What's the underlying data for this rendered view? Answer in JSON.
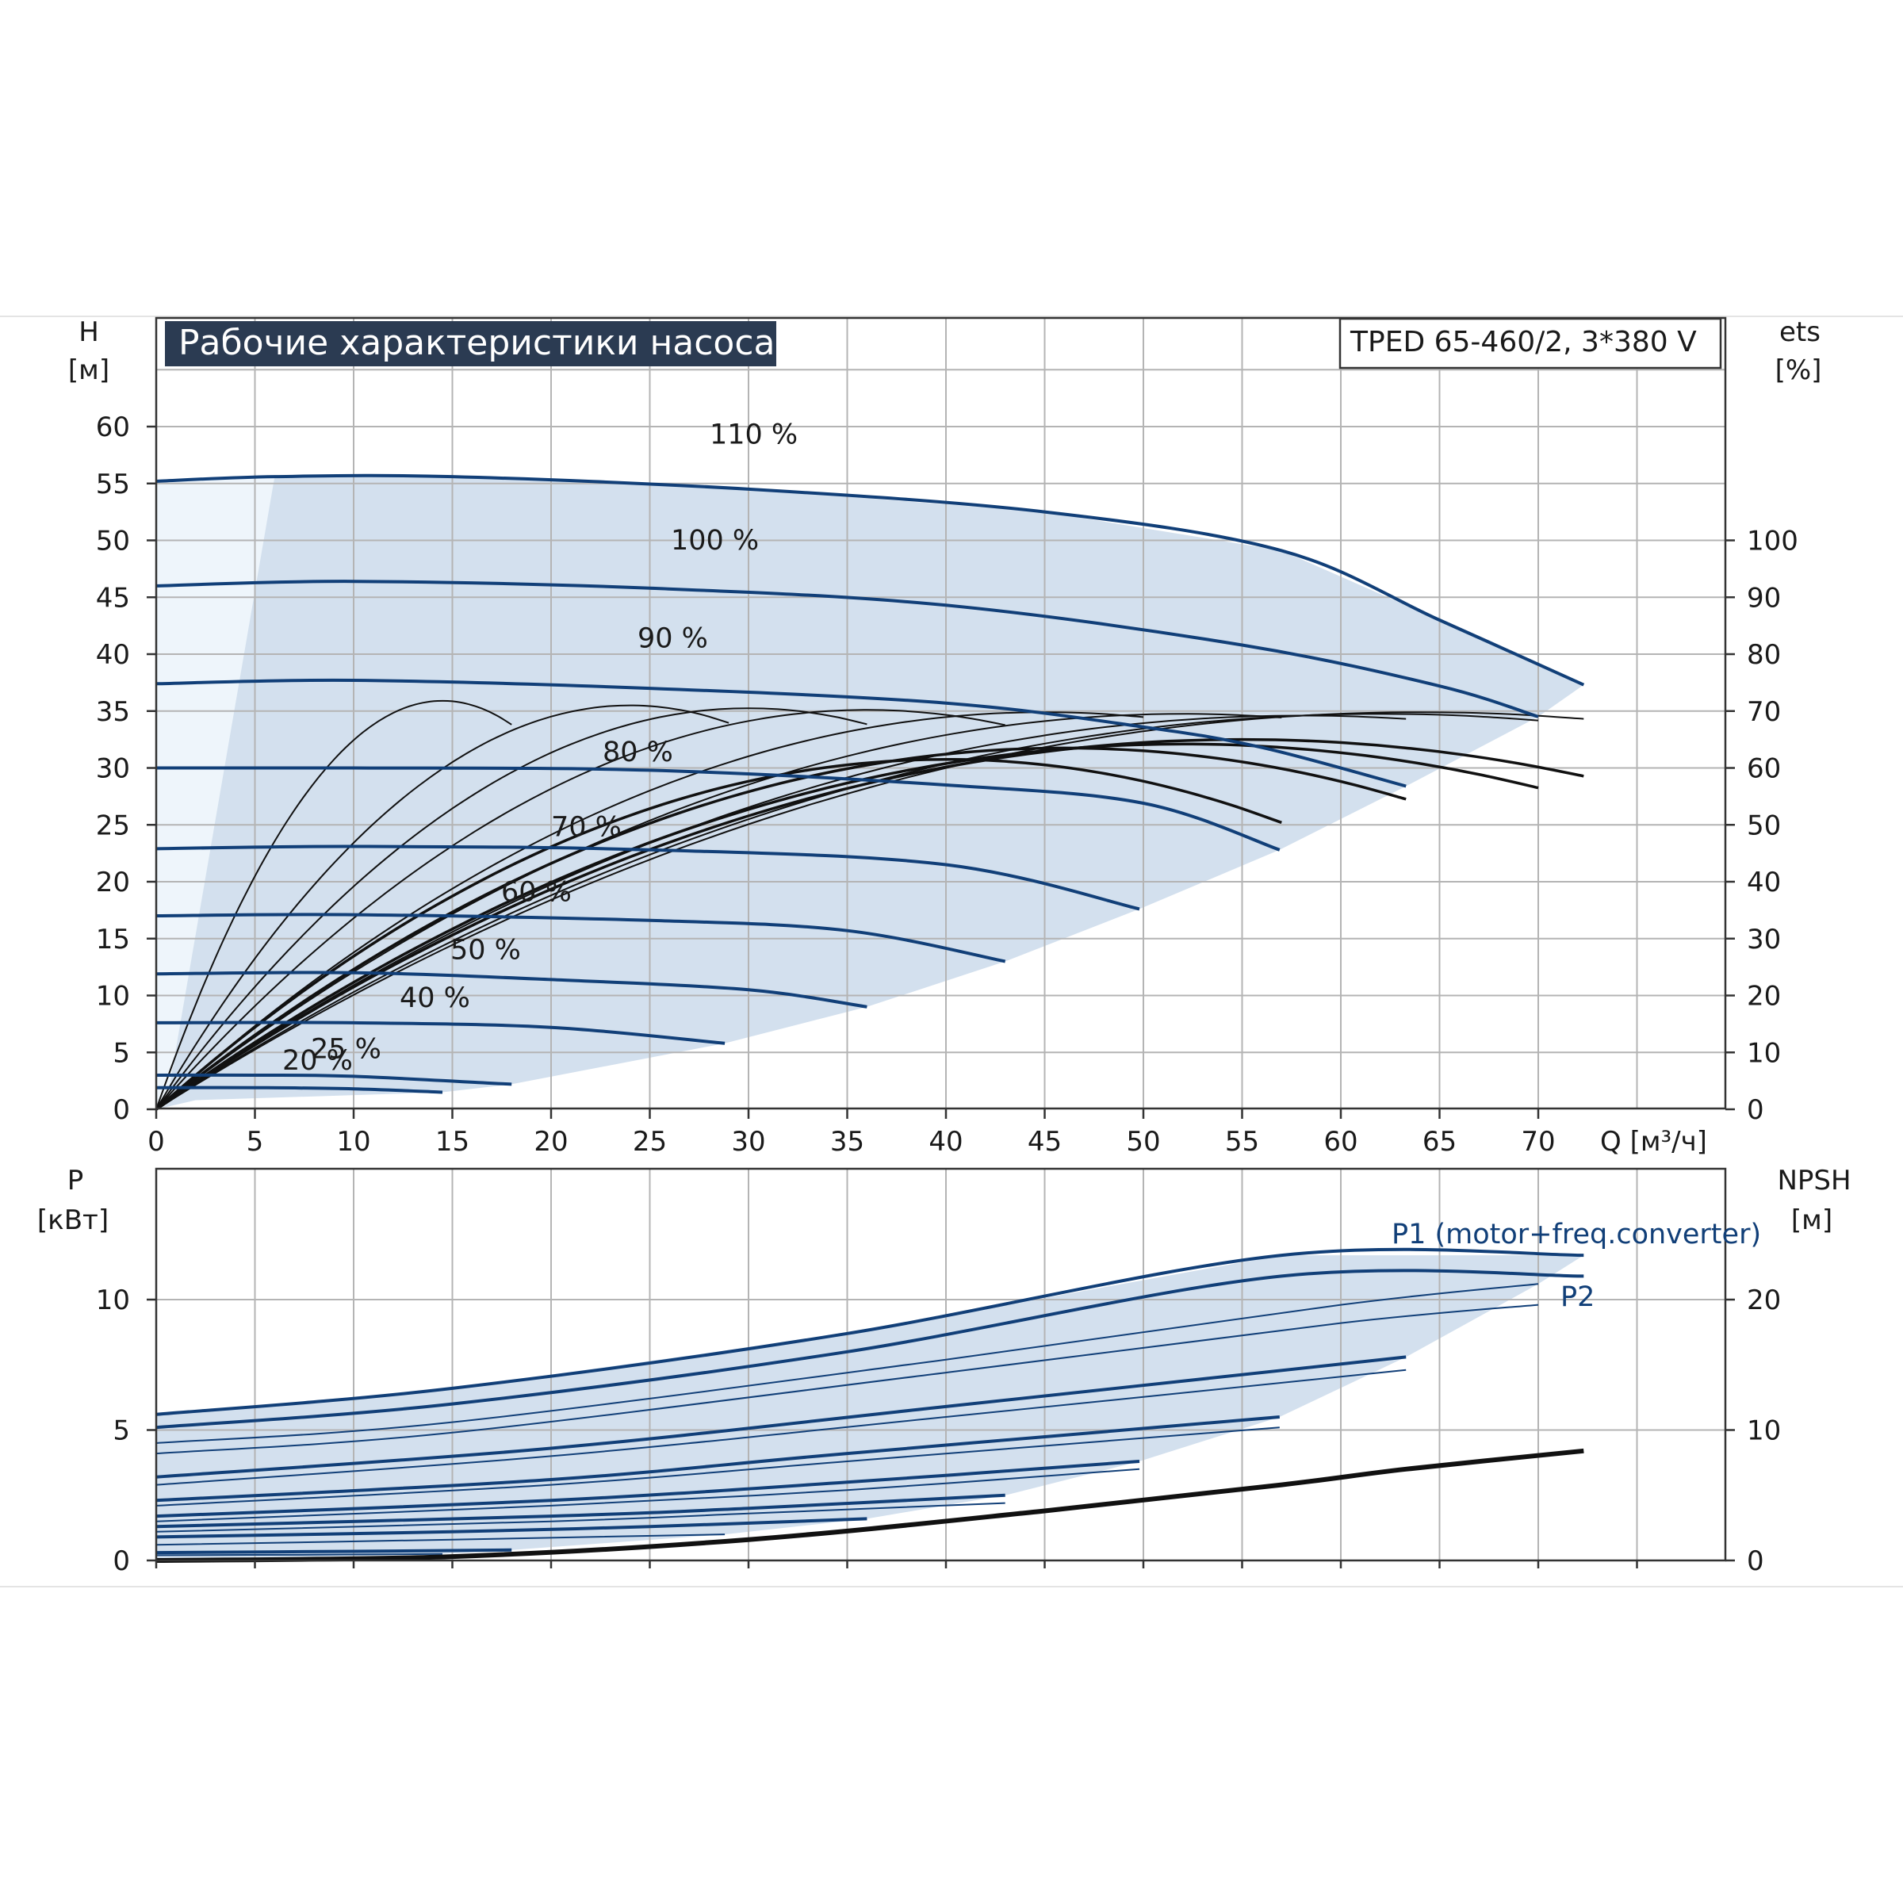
{
  "title": "Рабочие характеристики насоса",
  "model": "TPED 65-460/2, 3*380 V",
  "colors": {
    "curve": "#113f78",
    "efficiency": "#111111",
    "area": "#d3e0ee",
    "area_light": "#eef5fb",
    "title_bg": "#2b3b52"
  },
  "chart_data": [
    {
      "type": "line",
      "x_axis": {
        "label": "Q [м³/ч]",
        "ticks": [
          "0",
          "5",
          "10",
          "15",
          "20",
          "25",
          "30",
          "35",
          "40",
          "45",
          "50",
          "55",
          "60",
          "65",
          "70"
        ],
        "range": [
          0,
          79.5
        ]
      },
      "y_axis_left": {
        "label_top": "H",
        "label_unit": "[м]",
        "ticks": [
          "0",
          "5",
          "10",
          "15",
          "20",
          "25",
          "30",
          "35",
          "40",
          "45",
          "50",
          "55",
          "60"
        ],
        "range": [
          0,
          69.5
        ]
      },
      "y_axis_right": {
        "label_top": "ets",
        "label_unit": "[%]",
        "ticks": [
          "0",
          "10",
          "20",
          "30",
          "40",
          "50",
          "60",
          "70",
          "80",
          "90",
          "100"
        ]
      },
      "grid": true,
      "series": [
        {
          "name": "110 %",
          "x": [
            0,
            6,
            15,
            30,
            45,
            57,
            65,
            72.3
          ],
          "y": [
            55.2,
            55.6,
            55.6,
            54.5,
            52.5,
            49.1,
            43.0,
            37.3
          ]
        },
        {
          "name": "100 %",
          "x": [
            0,
            10,
            25,
            40,
            55,
            65,
            70
          ],
          "y": [
            46.0,
            46.4,
            45.8,
            44.3,
            40.8,
            37.2,
            34.5
          ]
        },
        {
          "name": "90 %",
          "x": [
            0,
            10,
            25,
            40,
            50,
            56,
            63.3
          ],
          "y": [
            37.4,
            37.7,
            37.0,
            35.7,
            33.6,
            31.8,
            28.4
          ]
        },
        {
          "name": "80 %",
          "x": [
            0,
            10,
            25,
            40,
            50,
            56.9
          ],
          "y": [
            30.0,
            30.0,
            29.8,
            28.5,
            26.9,
            22.8
          ]
        },
        {
          "name": "70 %",
          "x": [
            0,
            10,
            25,
            40,
            49.8
          ],
          "y": [
            22.9,
            23.1,
            22.8,
            21.5,
            17.6
          ]
        },
        {
          "name": "60 %",
          "x": [
            0,
            10,
            25,
            35,
            43
          ],
          "y": [
            17.0,
            17.1,
            16.6,
            15.7,
            13.0
          ]
        },
        {
          "name": "50 %",
          "x": [
            0,
            10,
            20,
            30,
            36
          ],
          "y": [
            11.9,
            12.0,
            11.4,
            10.5,
            9.0
          ]
        },
        {
          "name": "40 %",
          "x": [
            0,
            10,
            20,
            28.8
          ],
          "y": [
            7.6,
            7.6,
            7.2,
            5.8
          ]
        },
        {
          "name": "25 %",
          "x": [
            0,
            5,
            10,
            18
          ],
          "y": [
            3.0,
            3.0,
            2.9,
            2.2
          ]
        },
        {
          "name": "20 %",
          "x": [
            0,
            5,
            10,
            14.5
          ],
          "y": [
            1.9,
            1.9,
            1.8,
            1.5
          ]
        }
      ],
      "efficiency_peaks": [
        {
          "q": 14.5,
          "eta": 71.8,
          "qmax": 18
        },
        {
          "q": 24,
          "eta": 71.0,
          "qmax": 29
        },
        {
          "q": 30,
          "eta": 70.5,
          "qmax": 36
        },
        {
          "q": 36,
          "eta": 70.2,
          "qmax": 43
        },
        {
          "q": 45,
          "eta": 69.8,
          "qmax": 50
        },
        {
          "q": 52,
          "eta": 69.5,
          "qmax": 57
        },
        {
          "q": 58,
          "eta": 69.2,
          "qmax": 63.3
        },
        {
          "q": 62,
          "eta": 69.5,
          "qmax": 70
        },
        {
          "q": 64,
          "eta": 69.8,
          "qmax": 72.3
        },
        {
          "q": 55,
          "eta": 65.0,
          "qmax": 72.3
        },
        {
          "q": 52,
          "eta": 64.2,
          "qmax": 70
        },
        {
          "q": 46,
          "eta": 63.5,
          "qmax": 63.3
        },
        {
          "q": 40,
          "eta": 61.5,
          "qmax": 57
        }
      ]
    },
    {
      "type": "line",
      "x_axis": {
        "ticks": [],
        "range": [
          0,
          79.5
        ]
      },
      "y_axis_left": {
        "label_top": "P",
        "label_unit": "[кВт]",
        "ticks": [
          "0",
          "5",
          "10"
        ],
        "range": [
          0,
          15
        ]
      },
      "y_axis_right": {
        "label_top": "NPSH",
        "label_unit": "[м]",
        "ticks": [
          "0",
          "10",
          "20"
        ]
      },
      "grid": true,
      "series": [
        {
          "name": "P1 (motor+freq.converter)",
          "x": [
            0,
            15,
            35,
            57,
            72.3
          ],
          "y": [
            5.6,
            6.6,
            8.7,
            11.7,
            11.7
          ]
        },
        {
          "name": "P2",
          "x": [
            0,
            15,
            40,
            60,
            70
          ],
          "y": [
            4.5,
            5.3,
            7.7,
            9.8,
            10.6
          ]
        },
        {
          "name": "",
          "x": [
            0,
            15,
            35,
            57,
            72.3
          ],
          "y": [
            5.1,
            6.0,
            8.0,
            10.9,
            10.9
          ]
        },
        {
          "name": "",
          "x": [
            0,
            15,
            40,
            60,
            70
          ],
          "y": [
            4.1,
            4.9,
            7.2,
            9.1,
            9.8
          ]
        },
        {
          "name": "",
          "x": [
            0,
            20,
            40,
            63.3
          ],
          "y": [
            3.2,
            4.3,
            5.9,
            7.8
          ]
        },
        {
          "name": "",
          "x": [
            0,
            20,
            40,
            63.3
          ],
          "y": [
            2.9,
            4.0,
            5.5,
            7.3
          ]
        },
        {
          "name": "",
          "x": [
            0,
            20,
            35,
            56.9
          ],
          "y": [
            2.3,
            3.1,
            4.1,
            5.5
          ]
        },
        {
          "name": "",
          "x": [
            0,
            20,
            35,
            56.9
          ],
          "y": [
            2.1,
            2.9,
            3.8,
            5.1
          ]
        },
        {
          "name": "",
          "x": [
            0,
            20,
            35,
            49.8
          ],
          "y": [
            1.7,
            2.3,
            3.0,
            3.8
          ]
        },
        {
          "name": "",
          "x": [
            0,
            20,
            35,
            49.8
          ],
          "y": [
            1.5,
            2.1,
            2.7,
            3.5
          ]
        },
        {
          "name": "",
          "x": [
            0,
            20,
            30,
            43
          ],
          "y": [
            1.3,
            1.7,
            2.0,
            2.5
          ]
        },
        {
          "name": "",
          "x": [
            0,
            20,
            30,
            43
          ],
          "y": [
            1.1,
            1.5,
            1.8,
            2.2
          ]
        },
        {
          "name": "",
          "x": [
            0,
            15,
            25,
            36
          ],
          "y": [
            0.9,
            1.1,
            1.3,
            1.6
          ]
        },
        {
          "name": "",
          "x": [
            0,
            15,
            28.8
          ],
          "y": [
            0.6,
            0.8,
            1.0
          ]
        },
        {
          "name": "",
          "x": [
            0,
            10,
            18
          ],
          "y": [
            0.3,
            0.35,
            0.4
          ]
        },
        {
          "name": "",
          "x": [
            0,
            8,
            14.5
          ],
          "y": [
            0.2,
            0.22,
            0.25
          ]
        }
      ],
      "npsh": {
        "x": [
          0,
          15,
          30,
          45,
          57,
          63.3,
          72.3
        ],
        "y": [
          0,
          0.3,
          1.6,
          3.8,
          5.8,
          7.0,
          8.4
        ]
      }
    }
  ]
}
